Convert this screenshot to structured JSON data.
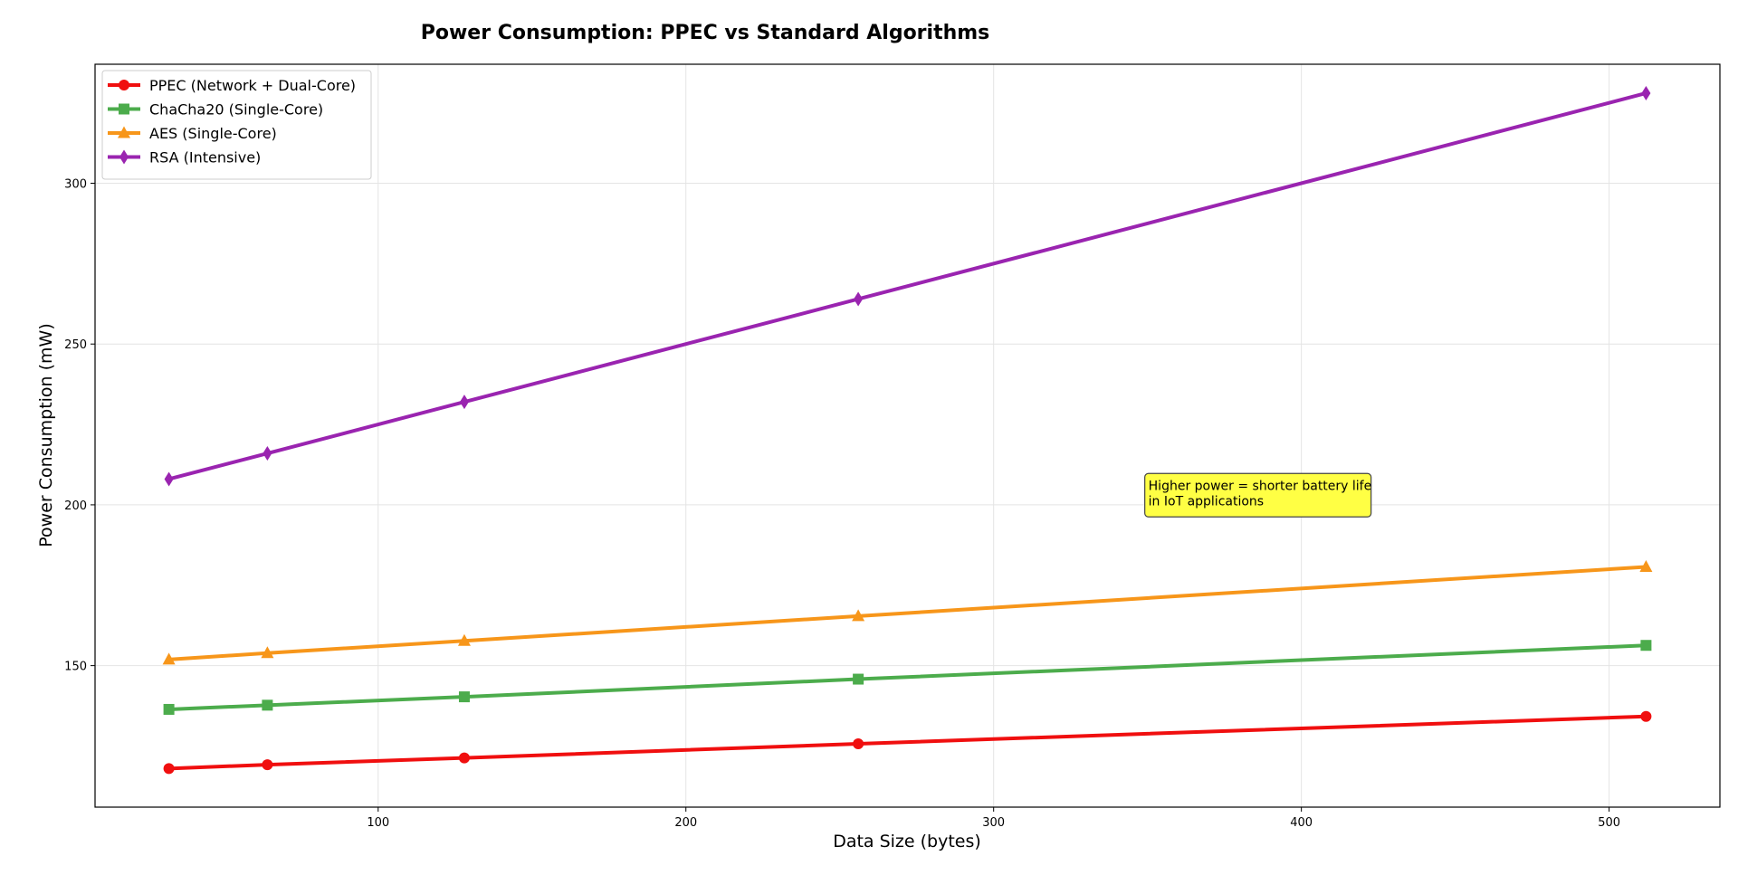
{
  "chart_data": {
    "type": "line",
    "title": "Power Consumption: PPEC vs Standard Algorithms",
    "xlabel": "Data Size (bytes)",
    "ylabel": "Power Consumption (mW)",
    "xlim": [
      8,
      536
    ],
    "ylim": [
      106,
      337
    ],
    "xticks": [
      100,
      200,
      300,
      400,
      500
    ],
    "yticks": [
      150,
      200,
      250,
      300
    ],
    "grid": true,
    "legend_position": "top-left",
    "x": [
      32,
      64,
      128,
      256,
      512
    ],
    "series": [
      {
        "name": "PPEC (Network + Dual-Core)",
        "color": "#f00f0f",
        "marker": "circle",
        "values": [
          118,
          119.2,
          121.3,
          125.7,
          134.2
        ]
      },
      {
        "name": "ChaCha20 (Single-Core)",
        "color": "#4cac4c",
        "marker": "square",
        "values": [
          136.4,
          137.7,
          140.3,
          145.8,
          156.3
        ]
      },
      {
        "name": "AES (Single-Core)",
        "color": "#f7961a",
        "marker": "triangle",
        "values": [
          151.9,
          153.9,
          157.7,
          165.4,
          180.7
        ]
      },
      {
        "name": "RSA (Intensive)",
        "color": "#9a24b0",
        "marker": "diamond",
        "values": [
          208,
          216,
          232,
          264,
          328
        ]
      }
    ],
    "annotation": {
      "lines": [
        "Higher power = shorter battery life",
        "in IoT applications"
      ],
      "x": 350,
      "y": 203,
      "background": "#ffff44"
    }
  }
}
